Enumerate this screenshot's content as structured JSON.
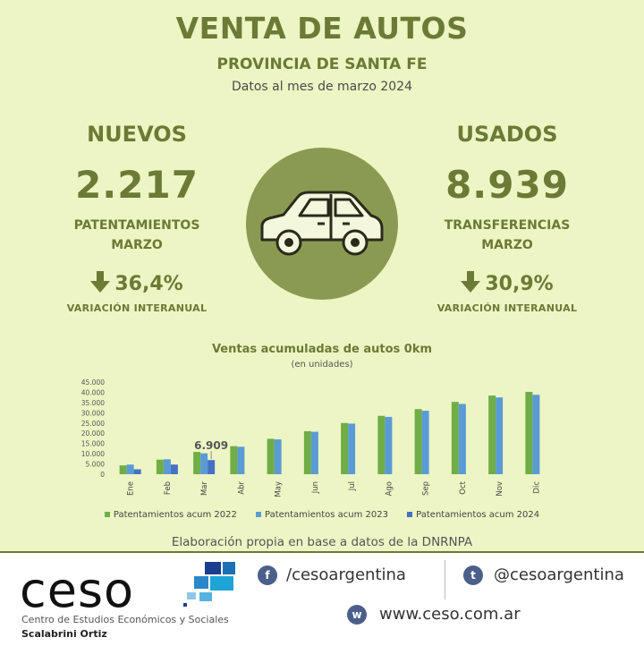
{
  "header": {
    "title": "VENTA DE AUTOS",
    "subtitle": "PROVINCIA DE SANTA FE",
    "date_line": "Datos al mes de marzo 2024"
  },
  "nuevos": {
    "heading": "NUEVOS",
    "value": "2.217",
    "label_line1": "PATENTAMIENTOS",
    "label_line2": "MARZO",
    "variation": "36,4%",
    "variation_label": "VARIACIÓN INTERANUAL"
  },
  "usados": {
    "heading": "USADOS",
    "value": "8.939",
    "label_line1": "TRANSFERENCIAS",
    "label_line2": "MARZO",
    "variation": "30,9%",
    "variation_label": "VARIACIÓN INTERANUAL"
  },
  "colors": {
    "olive": "#6b7a35",
    "circle": "#8a9a53",
    "series_2022": "#70ad47",
    "series_2023": "#5b9bd5",
    "series_2024": "#4472c4"
  },
  "chart_data": {
    "type": "bar",
    "title": "Ventas acumuladas de autos 0km",
    "subtitle": "(en unidades)",
    "categories": [
      "Ene",
      "Feb",
      "Mar",
      "Abr",
      "May",
      "Jun",
      "Jul",
      "Ago",
      "Sep",
      "Oct",
      "Nov",
      "Dic"
    ],
    "yticks": [
      "0",
      "5.000",
      "10.000",
      "15.000",
      "20.000",
      "25.000",
      "30.000",
      "35.000",
      "40.000",
      "45.000"
    ],
    "ylim": [
      0,
      45000
    ],
    "grid": false,
    "legend_position": "bottom",
    "annotation": {
      "text": "6.909",
      "category": "Mar",
      "series": "Patentamientos acum 2024"
    },
    "series": [
      {
        "name": "Patentamientos acum 2022",
        "values": [
          4300,
          7100,
          10900,
          13700,
          17300,
          21000,
          25000,
          28500,
          31800,
          35300,
          38400,
          40200
        ]
      },
      {
        "name": "Patentamientos acum 2023",
        "values": [
          4700,
          7300,
          10200,
          13400,
          17000,
          20700,
          24700,
          28000,
          31000,
          34300,
          37500,
          38800
        ]
      },
      {
        "name": "Patentamientos acum 2024",
        "values": [
          2400,
          4700,
          6909,
          null,
          null,
          null,
          null,
          null,
          null,
          null,
          null,
          null
        ]
      }
    ]
  },
  "source": "Elaboración propia en base a datos de la DNRNPA",
  "footer": {
    "logo": "ceso",
    "org_line1": "Centro de Estudios Económicos y Sociales",
    "org_line2": "Scalabrini Ortiz",
    "facebook": "/cesoargentina",
    "twitter": "@cesoargentina",
    "web": "www.ceso.com.ar",
    "facebook_icon": "f",
    "twitter_icon": "t",
    "web_icon": "w"
  }
}
